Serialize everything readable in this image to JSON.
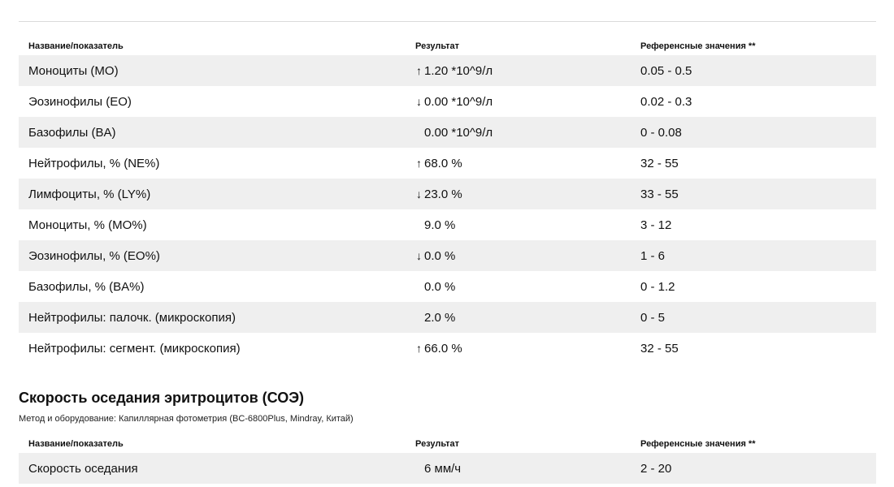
{
  "table1": {
    "header": {
      "name": "Название/показатель",
      "result": "Результат",
      "reference": "Референсные значения **"
    },
    "rows": [
      {
        "name": "Моноциты (MO)",
        "arrow": "↑",
        "result": "1.20 *10^9/л",
        "reference": "0.05 - 0.5"
      },
      {
        "name": "Эозинофилы (EO)",
        "arrow": "↓",
        "result": "0.00 *10^9/л",
        "reference": "0.02 - 0.3"
      },
      {
        "name": "Базофилы (BA)",
        "arrow": "",
        "result": "0.00 *10^9/л",
        "reference": "0 - 0.08"
      },
      {
        "name": "Нейтрофилы, % (NE%)",
        "arrow": "↑",
        "result": "68.0 %",
        "reference": "32 - 55"
      },
      {
        "name": "Лимфоциты, % (LY%)",
        "arrow": "↓",
        "result": "23.0 %",
        "reference": "33 - 55"
      },
      {
        "name": "Моноциты, % (MO%)",
        "arrow": "",
        "result": "9.0 %",
        "reference": "3 - 12"
      },
      {
        "name": "Эозинофилы, % (EO%)",
        "arrow": "↓",
        "result": "0.0 %",
        "reference": "1 - 6"
      },
      {
        "name": "Базофилы, % (BA%)",
        "arrow": "",
        "result": "0.0 %",
        "reference": "0 - 1.2"
      },
      {
        "name": "Нейтрофилы: палочк. (микроскопия)",
        "arrow": "",
        "result": "2.0 %",
        "reference": "0 - 5"
      },
      {
        "name": "Нейтрофилы: сегмент. (микроскопия)",
        "arrow": "↑",
        "result": "66.0 %",
        "reference": "32 - 55"
      }
    ]
  },
  "section2": {
    "title": "Скорость оседания эритроцитов (СОЭ)",
    "method": "Метод и оборудование: Капиллярная фотометрия (BC-6800Plus, Mindray, Китай)"
  },
  "table2": {
    "header": {
      "name": "Название/показатель",
      "result": "Результат",
      "reference": "Референсные значения **"
    },
    "rows": [
      {
        "name": "Скорость оседания",
        "arrow": "",
        "result": "6 мм/ч",
        "reference": "2 - 20"
      }
    ]
  }
}
